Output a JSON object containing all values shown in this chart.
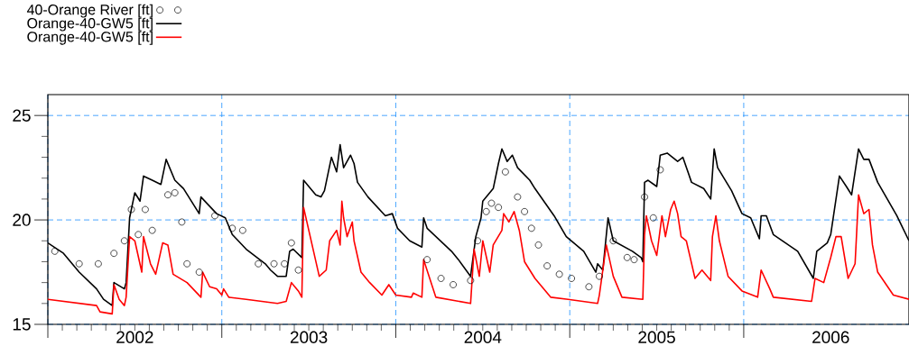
{
  "chart_data": {
    "type": "line",
    "xlim": [
      2002,
      2006.95
    ],
    "ylim": [
      15,
      26
    ],
    "xticks": [
      {
        "value": 2002,
        "label": null
      },
      {
        "value": 2003,
        "label": null
      },
      {
        "value": 2004,
        "label": null
      },
      {
        "value": 2005,
        "label": null
      },
      {
        "value": 2006,
        "label": null
      },
      {
        "value": 2002.5,
        "label": "2002"
      },
      {
        "value": 2003.5,
        "label": "2003"
      },
      {
        "value": 2004.5,
        "label": "2004"
      },
      {
        "value": 2005.5,
        "label": "2005"
      },
      {
        "value": 2006.5,
        "label": "2006"
      }
    ],
    "yticks": [
      15,
      20,
      25
    ],
    "grid": true,
    "legend": "top left",
    "series": [
      {
        "name": "40-Orange River [ft]",
        "type": "scatter",
        "marker": "circle",
        "color": "#000000",
        "x": [
          2002.04,
          2002.18,
          2002.29,
          2002.38,
          2002.44,
          2002.48,
          2002.52,
          2002.56,
          2002.6,
          2002.69,
          2002.73,
          2002.77,
          2002.8,
          2002.87,
          2002.96,
          2003.06,
          2003.12,
          2003.21,
          2003.3,
          2003.36,
          2003.4,
          2003.44,
          2004.18,
          2004.26,
          2004.33,
          2004.43,
          2004.47,
          2004.52,
          2004.55,
          2004.59,
          2004.63,
          2004.7,
          2004.74,
          2004.78,
          2004.82,
          2004.87,
          2004.94,
          2005.01,
          2005.11,
          2005.17,
          2005.25,
          2005.33,
          2005.37,
          2005.43,
          2005.48,
          2005.52
        ],
        "values": [
          18.5,
          17.9,
          17.9,
          18.4,
          19.0,
          20.5,
          19.3,
          20.5,
          19.5,
          21.2,
          21.3,
          19.9,
          17.9,
          17.5,
          20.2,
          19.6,
          19.5,
          17.9,
          17.9,
          17.9,
          18.9,
          17.6,
          18.1,
          17.2,
          16.9,
          17.1,
          19.0,
          20.4,
          20.8,
          20.6,
          22.3,
          21.1,
          20.4,
          19.6,
          18.8,
          17.8,
          17.4,
          17.2,
          16.8,
          17.3,
          19.0,
          18.2,
          18.1,
          21.1,
          20.1,
          22.4
        ]
      },
      {
        "name": "Orange-40-GW5 [ft]",
        "color": "#000000",
        "x": [
          2002.0,
          2002.09,
          2002.14,
          2002.18,
          2002.28,
          2002.32,
          2002.37,
          2002.38,
          2002.44,
          2002.45,
          2002.47,
          2002.5,
          2002.53,
          2002.55,
          2002.6,
          2002.65,
          2002.68,
          2002.73,
          2002.78,
          2002.87,
          2002.88,
          2002.97,
          2003.02,
          2003.06,
          2003.14,
          2003.25,
          2003.28,
          2003.32,
          2003.37,
          2003.39,
          2003.41,
          2003.46,
          2003.47,
          2003.5,
          2003.54,
          2003.57,
          2003.59,
          2003.63,
          2003.66,
          2003.68,
          2003.7,
          2003.74,
          2003.76,
          2003.78,
          2003.84,
          2003.94,
          2003.98,
          2004.01,
          2004.08,
          2004.15,
          2004.16,
          2004.18,
          2004.32,
          2004.36,
          2004.43,
          2004.46,
          2004.49,
          2004.5,
          2004.56,
          2004.59,
          2004.61,
          2004.64,
          2004.67,
          2004.7,
          2004.77,
          2004.8,
          2004.91,
          2004.98,
          2005.08,
          2005.15,
          2005.16,
          2005.19,
          2005.22,
          2005.25,
          2005.36,
          2005.41,
          2005.42,
          2005.43,
          2005.45,
          2005.5,
          2005.52,
          2005.56,
          2005.62,
          2005.65,
          2005.7,
          2005.77,
          2005.81,
          2005.83,
          2005.85,
          2005.93,
          2005.99,
          2006.04,
          2006.09,
          2006.1,
          2006.13,
          2006.17,
          2006.31,
          2006.4,
          2006.42,
          2006.48,
          2006.5,
          2006.55,
          2006.59,
          2006.62,
          2006.66,
          2006.69,
          2006.72,
          2006.77,
          2006.88,
          2006.95
        ],
        "values": [
          18.9,
          18.4,
          17.9,
          17.5,
          16.7,
          16.2,
          15.9,
          17.0,
          16.7,
          17.0,
          20.1,
          21.3,
          20.9,
          22.1,
          21.9,
          21.7,
          22.9,
          21.9,
          21.5,
          20.3,
          21.1,
          20.3,
          20.1,
          19.3,
          18.6,
          17.9,
          17.6,
          17.3,
          17.3,
          18.5,
          18.6,
          18.2,
          21.9,
          21.6,
          21.2,
          21.1,
          21.4,
          23.0,
          22.3,
          23.6,
          22.5,
          23.1,
          22.7,
          21.8,
          21.1,
          20.2,
          20.3,
          19.6,
          19.0,
          18.7,
          20.1,
          19.6,
          18.5,
          18.1,
          17.3,
          19.2,
          20.1,
          20.9,
          21.5,
          22.7,
          23.4,
          22.8,
          23.1,
          22.5,
          21.9,
          21.5,
          20.2,
          19.2,
          18.5,
          17.5,
          17.9,
          17.6,
          20.1,
          19.0,
          18.5,
          18.2,
          18.0,
          21.8,
          21.9,
          21.6,
          23.1,
          23.2,
          22.8,
          23.0,
          21.8,
          21.5,
          21.0,
          23.4,
          22.5,
          21.4,
          20.3,
          20.1,
          19.1,
          20.2,
          20.2,
          19.3,
          18.5,
          17.2,
          18.5,
          18.9,
          19.3,
          22.1,
          21.6,
          21.2,
          23.4,
          22.9,
          22.9,
          21.8,
          20.2,
          19.0
        ]
      },
      {
        "name": "Orange-40-GW5 [ft]",
        "color": "#ff0000",
        "x": [
          2002.0,
          2002.28,
          2002.3,
          2002.37,
          2002.38,
          2002.41,
          2002.44,
          2002.45,
          2002.47,
          2002.5,
          2002.54,
          2002.55,
          2002.59,
          2002.62,
          2002.66,
          2002.69,
          2002.72,
          2002.8,
          2002.88,
          2002.89,
          2002.93,
          2002.97,
          2003.0,
          2003.01,
          2003.04,
          2003.14,
          2003.32,
          2003.37,
          2003.4,
          2003.44,
          2003.46,
          2003.47,
          2003.5,
          2003.56,
          2003.6,
          2003.62,
          2003.66,
          2003.68,
          2003.69,
          2003.7,
          2003.72,
          2003.75,
          2003.76,
          2003.8,
          2003.85,
          2003.92,
          2003.96,
          2004.0,
          2004.09,
          2004.1,
          2004.15,
          2004.16,
          2004.23,
          2004.43,
          2004.45,
          2004.48,
          2004.5,
          2004.54,
          2004.56,
          2004.61,
          2004.62,
          2004.65,
          2004.68,
          2004.71,
          2004.74,
          2004.8,
          2004.89,
          2004.99,
          2005.16,
          2005.17,
          2005.21,
          2005.25,
          2005.3,
          2005.42,
          2005.43,
          2005.44,
          2005.47,
          2005.5,
          2005.53,
          2005.55,
          2005.58,
          2005.6,
          2005.62,
          2005.64,
          2005.67,
          2005.72,
          2005.76,
          2005.81,
          2005.82,
          2005.84,
          2005.86,
          2005.91,
          2005.99,
          2006.08,
          2006.1,
          2006.15,
          2006.17,
          2006.39,
          2006.41,
          2006.46,
          2006.5,
          2006.53,
          2006.56,
          2006.6,
          2006.64,
          2006.66,
          2006.69,
          2006.72,
          2006.74,
          2006.77,
          2006.86,
          2006.95
        ],
        "values": [
          16.2,
          15.9,
          15.6,
          15.5,
          16.9,
          16.2,
          15.9,
          16.3,
          19.2,
          19.0,
          17.5,
          19.2,
          17.9,
          17.4,
          18.9,
          18.8,
          17.4,
          17.0,
          16.3,
          17.5,
          16.8,
          16.7,
          16.4,
          16.7,
          16.3,
          16.2,
          16.0,
          16.1,
          17.0,
          16.6,
          16.3,
          20.6,
          19.5,
          17.3,
          17.6,
          19.0,
          19.5,
          18.8,
          20.9,
          20.1,
          19.2,
          19.9,
          19.0,
          17.5,
          17.0,
          16.4,
          16.9,
          16.4,
          16.3,
          16.5,
          16.3,
          18.1,
          16.3,
          16.0,
          18.6,
          17.3,
          19.0,
          17.5,
          18.8,
          19.5,
          20.3,
          19.9,
          20.4,
          19.5,
          18.0,
          17.2,
          16.3,
          16.2,
          16.0,
          16.4,
          18.8,
          17.3,
          16.3,
          16.2,
          19.3,
          20.2,
          19.0,
          18.3,
          20.2,
          19.2,
          20.5,
          20.9,
          20.3,
          19.2,
          19.0,
          17.2,
          17.6,
          17.1,
          19.2,
          20.2,
          19.0,
          17.3,
          16.6,
          16.3,
          17.6,
          16.7,
          16.3,
          16.1,
          17.2,
          17.0,
          18.2,
          19.2,
          19.2,
          17.2,
          17.9,
          21.2,
          20.3,
          20.5,
          18.8,
          17.5,
          16.4,
          16.2
        ]
      }
    ]
  }
}
